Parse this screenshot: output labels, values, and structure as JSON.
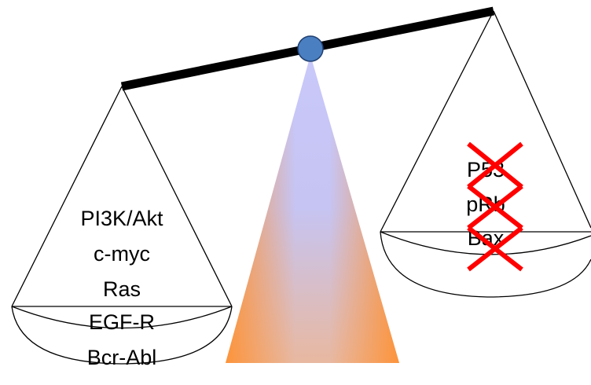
{
  "left_pan": {
    "items": [
      "PI3K/Akt",
      "c-myc",
      "Ras",
      "EGF-R",
      "Bcr-Abl"
    ]
  },
  "right_pan": {
    "items": [
      "P53",
      "pRb",
      "Bax"
    ]
  }
}
